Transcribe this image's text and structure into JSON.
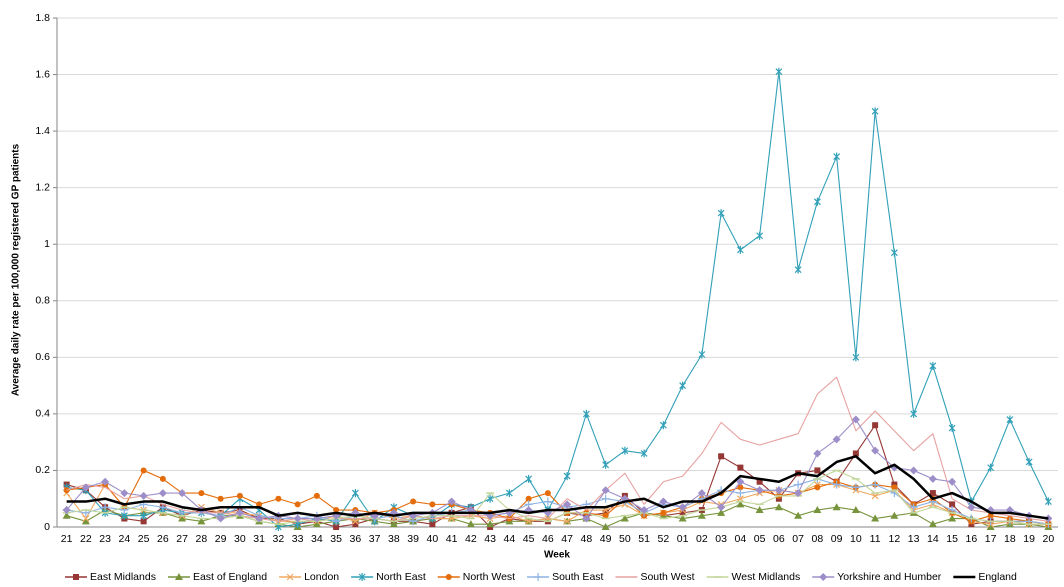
{
  "chart_data": {
    "type": "line",
    "y_label": "Average daily rate per 100,000 registered GP patients",
    "x_label": "Week",
    "categories": [
      "21",
      "22",
      "23",
      "24",
      "25",
      "26",
      "27",
      "28",
      "29",
      "30",
      "31",
      "32",
      "33",
      "34",
      "35",
      "36",
      "37",
      "38",
      "39",
      "40",
      "41",
      "42",
      "43",
      "44",
      "45",
      "46",
      "47",
      "48",
      "49",
      "50",
      "51",
      "52",
      "01",
      "02",
      "03",
      "04",
      "05",
      "06",
      "07",
      "08",
      "09",
      "10",
      "11",
      "12",
      "13",
      "14",
      "15",
      "16",
      "17",
      "18",
      "19",
      "20"
    ],
    "ylim": [
      0,
      1.8
    ],
    "yticks": [
      0,
      0.2,
      0.4,
      0.6,
      0.8,
      1,
      1.2,
      1.4,
      1.6,
      1.8
    ],
    "grid": true,
    "legend": "bottom",
    "series": [
      {
        "name": "East Midlands",
        "color": "#953735",
        "marker": "square",
        "values": [
          0.15,
          0.13,
          0.07,
          0.03,
          0.02,
          0.07,
          0.04,
          0.06,
          0.05,
          0.06,
          0.03,
          0.03,
          0.01,
          0.02,
          0.0,
          0.01,
          0.03,
          0.02,
          0.02,
          0.01,
          0.05,
          0.07,
          0.0,
          0.03,
          0.02,
          0.02,
          0.05,
          0.04,
          0.05,
          0.11,
          0.05,
          0.04,
          0.05,
          0.06,
          0.25,
          0.21,
          0.16,
          0.1,
          0.19,
          0.2,
          0.16,
          0.26,
          0.36,
          0.15,
          0.08,
          0.12,
          0.08,
          0.01,
          0.02,
          0.02,
          0.02,
          0.01
        ]
      },
      {
        "name": "East of England",
        "color": "#77933c",
        "marker": "triangle",
        "values": [
          0.04,
          0.02,
          0.06,
          0.04,
          0.05,
          0.05,
          0.03,
          0.02,
          0.04,
          0.04,
          0.02,
          0.01,
          0.0,
          0.01,
          0.02,
          0.03,
          0.02,
          0.01,
          0.02,
          0.03,
          0.03,
          0.01,
          0.01,
          0.02,
          0.02,
          0.03,
          0.02,
          0.03,
          0.0,
          0.03,
          0.05,
          0.04,
          0.03,
          0.04,
          0.05,
          0.08,
          0.06,
          0.07,
          0.04,
          0.06,
          0.07,
          0.06,
          0.03,
          0.04,
          0.05,
          0.01,
          0.03,
          0.03,
          0.0,
          0.01,
          0.01,
          0.0
        ]
      },
      {
        "name": "London",
        "color": "#f0a860",
        "marker": "x",
        "values": [
          0.12,
          0.03,
          0.15,
          0.07,
          0.06,
          0.05,
          0.04,
          0.07,
          0.05,
          0.05,
          0.04,
          0.02,
          0.02,
          0.02,
          0.04,
          0.02,
          0.05,
          0.03,
          0.04,
          0.03,
          0.03,
          0.04,
          0.03,
          0.04,
          0.02,
          0.03,
          0.02,
          0.06,
          0.06,
          0.08,
          0.04,
          0.05,
          0.06,
          0.09,
          0.08,
          0.1,
          0.12,
          0.13,
          0.12,
          0.15,
          0.15,
          0.13,
          0.11,
          0.13,
          0.06,
          0.08,
          0.05,
          0.02,
          0.01,
          0.02,
          0.01,
          0.01
        ]
      },
      {
        "name": "North East",
        "color": "#31a0b8",
        "marker": "star",
        "values": [
          0.14,
          0.13,
          0.05,
          0.04,
          0.04,
          0.06,
          0.05,
          0.05,
          0.04,
          0.1,
          0.06,
          0.0,
          0.01,
          0.03,
          0.02,
          0.12,
          0.02,
          0.07,
          0.04,
          0.03,
          0.08,
          0.07,
          0.1,
          0.12,
          0.17,
          0.06,
          0.18,
          0.4,
          0.22,
          0.27,
          0.26,
          0.36,
          0.5,
          0.61,
          1.11,
          0.98,
          1.03,
          1.61,
          0.91,
          1.15,
          1.31,
          0.6,
          1.47,
          0.97,
          0.4,
          0.57,
          0.35,
          0.09,
          0.21,
          0.38,
          0.23,
          0.09
        ]
      },
      {
        "name": "North West",
        "color": "#e46c0a",
        "marker": "circle",
        "values": [
          0.13,
          0.14,
          0.15,
          0.07,
          0.2,
          0.17,
          0.12,
          0.12,
          0.1,
          0.11,
          0.08,
          0.1,
          0.08,
          0.11,
          0.06,
          0.06,
          0.05,
          0.06,
          0.09,
          0.08,
          0.08,
          0.06,
          0.05,
          0.03,
          0.1,
          0.12,
          0.05,
          0.05,
          0.04,
          0.1,
          0.04,
          0.05,
          0.07,
          0.1,
          0.12,
          0.14,
          0.13,
          0.11,
          0.12,
          0.14,
          0.16,
          0.14,
          0.15,
          0.14,
          0.08,
          0.1,
          0.05,
          0.02,
          0.04,
          0.03,
          0.02,
          0.01
        ]
      },
      {
        "name": "South East",
        "color": "#8eb4e3",
        "marker": "plus",
        "values": [
          0.06,
          0.05,
          0.07,
          0.06,
          0.08,
          0.07,
          0.05,
          0.05,
          0.04,
          0.07,
          0.04,
          0.03,
          0.03,
          0.04,
          0.02,
          0.04,
          0.03,
          0.04,
          0.02,
          0.04,
          0.05,
          0.06,
          0.04,
          0.05,
          0.08,
          0.09,
          0.07,
          0.08,
          0.1,
          0.09,
          0.05,
          0.08,
          0.07,
          0.1,
          0.13,
          0.12,
          0.13,
          0.13,
          0.15,
          0.17,
          0.15,
          0.14,
          0.15,
          0.12,
          0.07,
          0.09,
          0.06,
          0.03,
          0.02,
          0.02,
          0.02,
          0.01
        ]
      },
      {
        "name": "South West",
        "color": "#e6a2a0",
        "marker": "none",
        "values": [
          0.13,
          0.15,
          0.14,
          0.1,
          0.11,
          0.08,
          0.06,
          0.05,
          0.05,
          0.04,
          0.03,
          0.02,
          0.03,
          0.02,
          0.03,
          0.03,
          0.03,
          0.02,
          0.04,
          0.03,
          0.04,
          0.04,
          0.04,
          0.03,
          0.04,
          0.03,
          0.1,
          0.06,
          0.13,
          0.19,
          0.08,
          0.16,
          0.18,
          0.26,
          0.37,
          0.31,
          0.29,
          0.31,
          0.33,
          0.47,
          0.53,
          0.34,
          0.41,
          0.34,
          0.27,
          0.33,
          0.1,
          0.06,
          0.05,
          0.04,
          0.03,
          0.02
        ]
      },
      {
        "name": "West Midlands",
        "color": "#c3d69b",
        "marker": "dash",
        "values": [
          0.05,
          0.06,
          0.05,
          0.07,
          0.06,
          0.05,
          0.04,
          0.03,
          0.03,
          0.04,
          0.02,
          0.01,
          0.02,
          0.02,
          0.03,
          0.04,
          0.03,
          0.02,
          0.03,
          0.04,
          0.04,
          0.03,
          0.12,
          0.06,
          0.03,
          0.02,
          0.05,
          0.05,
          0.03,
          0.04,
          0.05,
          0.03,
          0.04,
          0.06,
          0.07,
          0.09,
          0.08,
          0.11,
          0.11,
          0.17,
          0.2,
          0.17,
          0.12,
          0.13,
          0.05,
          0.07,
          0.05,
          0.03,
          0.02,
          0.02,
          0.01,
          0.01
        ]
      },
      {
        "name": "Yorkshire and Humber",
        "color": "#9d8ec9",
        "marker": "diamond",
        "values": [
          0.06,
          0.14,
          0.16,
          0.12,
          0.11,
          0.12,
          0.12,
          0.06,
          0.03,
          0.05,
          0.03,
          0.04,
          0.03,
          0.03,
          0.04,
          0.05,
          0.04,
          0.05,
          0.04,
          0.05,
          0.09,
          0.06,
          0.04,
          0.05,
          0.06,
          0.05,
          0.08,
          0.03,
          0.13,
          0.1,
          0.06,
          0.09,
          0.07,
          0.12,
          0.07,
          0.16,
          0.13,
          0.13,
          0.12,
          0.26,
          0.31,
          0.38,
          0.27,
          0.21,
          0.2,
          0.17,
          0.16,
          0.07,
          0.06,
          0.06,
          0.04,
          0.03
        ]
      },
      {
        "name": "England",
        "color": "#000000",
        "marker": "none",
        "width": 2.5,
        "values": [
          0.09,
          0.09,
          0.1,
          0.08,
          0.09,
          0.09,
          0.07,
          0.06,
          0.07,
          0.07,
          0.07,
          0.04,
          0.05,
          0.04,
          0.05,
          0.04,
          0.05,
          0.04,
          0.05,
          0.05,
          0.05,
          0.05,
          0.05,
          0.06,
          0.05,
          0.06,
          0.06,
          0.07,
          0.07,
          0.09,
          0.1,
          0.07,
          0.09,
          0.09,
          0.12,
          0.18,
          0.17,
          0.16,
          0.19,
          0.18,
          0.23,
          0.25,
          0.19,
          0.22,
          0.17,
          0.1,
          0.12,
          0.09,
          0.05,
          0.05,
          0.04,
          0.03
        ]
      }
    ]
  }
}
